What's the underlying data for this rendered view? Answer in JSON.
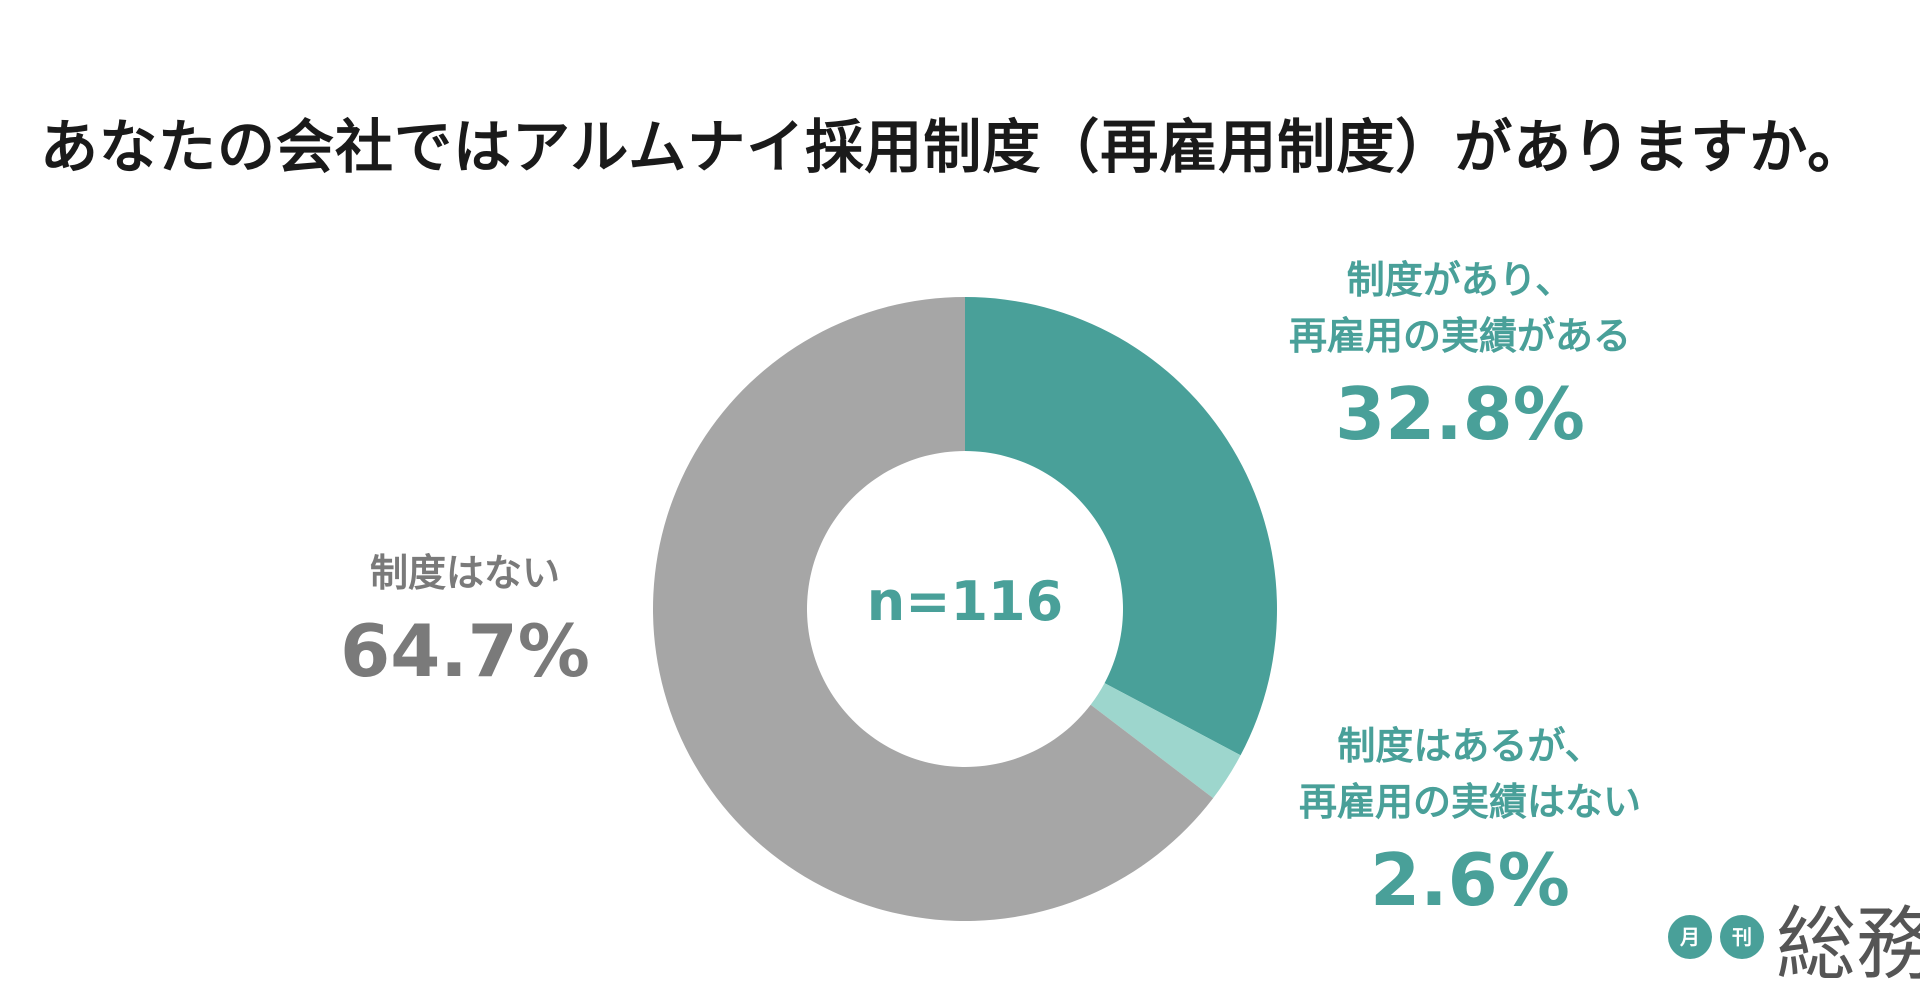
{
  "colors": {
    "accent": "#49a099",
    "accent_light": "#9dd6cd",
    "gray": "#a6a6a6",
    "gray_text": "#7a7a7a",
    "title": "#1a1a1a"
  },
  "chart_data": {
    "type": "pie",
    "title": "あなたの会社ではアルムナイ採用制度（再雇用制度）がありますか。",
    "center_label": "n=116",
    "slices": [
      {
        "label_line1": "制度があり、",
        "label_line2": "再雇用の実績がある",
        "value": 32.8,
        "value_text": "32.8%",
        "color": "#49a099"
      },
      {
        "label_line1": "制度はあるが、",
        "label_line2": "再雇用の実績はない",
        "value": 2.6,
        "value_text": "2.6%",
        "color": "#9dd6cd"
      },
      {
        "label_line1": "制度はない",
        "label_line2": "",
        "value": 64.7,
        "value_text": "64.7%",
        "color": "#a6a6a6"
      }
    ]
  },
  "logo": {
    "badge_1": "月",
    "badge_2": "刊",
    "text": "総務"
  }
}
